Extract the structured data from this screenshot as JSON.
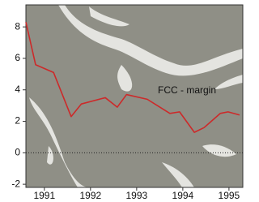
{
  "chart_data": {
    "type": "line",
    "x": [
      1991.1,
      1991.31,
      1991.7,
      1992.08,
      1992.3,
      1992.82,
      1993.08,
      1993.28,
      1993.73,
      1994.22,
      1994.43,
      1994.75,
      1994.96,
      1995.31,
      1995.48,
      1995.73
    ],
    "series": [
      {
        "name": "FCC - margin",
        "color": "#cc2a2a",
        "values": [
          8.3,
          5.6,
          5.1,
          2.3,
          3.1,
          3.5,
          2.9,
          3.7,
          3.4,
          2.5,
          2.6,
          1.3,
          1.6,
          2.5,
          2.6,
          2.4
        ]
      }
    ],
    "xlim": [
      1991.1,
      1995.8
    ],
    "xticks": [
      {
        "value": 1991.5,
        "label": "1991"
      },
      {
        "value": 1992.5,
        "label": "1992"
      },
      {
        "value": 1993.5,
        "label": "1993"
      },
      {
        "value": 1994.5,
        "label": "1994"
      },
      {
        "value": 1995.5,
        "label": "1995"
      }
    ],
    "ylim": [
      -2.2,
      9.4
    ],
    "yticks": [
      -2,
      0,
      2,
      4,
      6,
      8
    ],
    "reference_line": 0
  }
}
